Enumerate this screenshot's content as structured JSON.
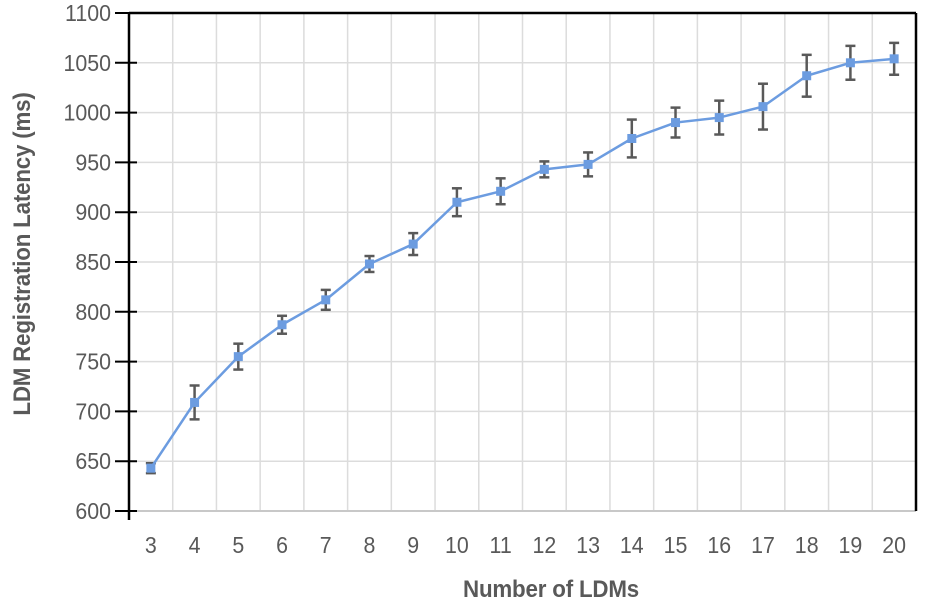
{
  "chart_data": {
    "type": "line",
    "title": "",
    "xlabel": "Number of LDMs",
    "ylabel": "LDM Registration Latency (ms)",
    "x": [
      3,
      4,
      5,
      6,
      7,
      8,
      9,
      10,
      11,
      12,
      13,
      14,
      15,
      16,
      17,
      18,
      19,
      20
    ],
    "series": [
      {
        "name": "LDM Registration Latency",
        "values": [
          643,
          709,
          755,
          787,
          812,
          848,
          868,
          910,
          921,
          943,
          948,
          974,
          990,
          995,
          1006,
          1037,
          1050,
          1054
        ],
        "errors": [
          5,
          17,
          13,
          9,
          10,
          8,
          11,
          14,
          13,
          8,
          12,
          19,
          15,
          17,
          23,
          21,
          17,
          16
        ]
      }
    ],
    "ylim": [
      600,
      1100
    ],
    "ytick_step": 50,
    "yticks": [
      600,
      650,
      700,
      750,
      800,
      850,
      900,
      950,
      1000,
      1050,
      1100
    ],
    "grid": "on",
    "legend": "none",
    "marker": "square",
    "colors": {
      "line": "#6C9CE0",
      "marker": "#6C9CE0",
      "error_bar": "#595959",
      "gridline": "#DCDCDC",
      "axis": "#000000",
      "bottom_axis_line": "#C8C8C8",
      "tick_label": "#595959",
      "axis_title": "#595959",
      "background": "#FFFFFF"
    }
  }
}
